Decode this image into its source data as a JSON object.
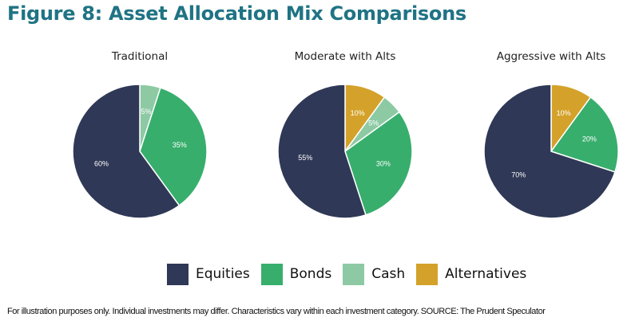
{
  "title": "Figure 8: Asset Allocation Mix Comparisons",
  "footnote": "For illustration purposes only. Individual investments may differ. Characteristics vary within each investment category. SOURCE: The Prudent Speculator",
  "colors": {
    "Equities": "#2f3856",
    "Bonds": "#38ae6d",
    "Cash": "#8dcaa4",
    "Alternatives": "#d4a22a",
    "title": "#1f7384"
  },
  "legend": [
    {
      "label": "Equities",
      "color": "#2f3856"
    },
    {
      "label": "Bonds",
      "color": "#38ae6d"
    },
    {
      "label": "Cash",
      "color": "#8dcaa4"
    },
    {
      "label": "Alternatives",
      "color": "#d4a22a"
    }
  ],
  "chart_data": [
    {
      "type": "pie",
      "title": "Traditional",
      "slices": [
        {
          "label": "Cash",
          "value": 5,
          "text": "5%"
        },
        {
          "label": "Bonds",
          "value": 35,
          "text": "35%"
        },
        {
          "label": "Equities",
          "value": 60,
          "text": "60%"
        }
      ]
    },
    {
      "type": "pie",
      "title": "Moderate with Alts",
      "slices": [
        {
          "label": "Alternatives",
          "value": 10,
          "text": "10%"
        },
        {
          "label": "Cash",
          "value": 5,
          "text": "5%"
        },
        {
          "label": "Bonds",
          "value": 30,
          "text": "30%"
        },
        {
          "label": "Equities",
          "value": 55,
          "text": "55%"
        }
      ]
    },
    {
      "type": "pie",
      "title": "Aggressive with Alts",
      "slices": [
        {
          "label": "Alternatives",
          "value": 10,
          "text": "10%"
        },
        {
          "label": "Bonds",
          "value": 20,
          "text": "20%"
        },
        {
          "label": "Equities",
          "value": 70,
          "text": "70%"
        }
      ]
    }
  ]
}
